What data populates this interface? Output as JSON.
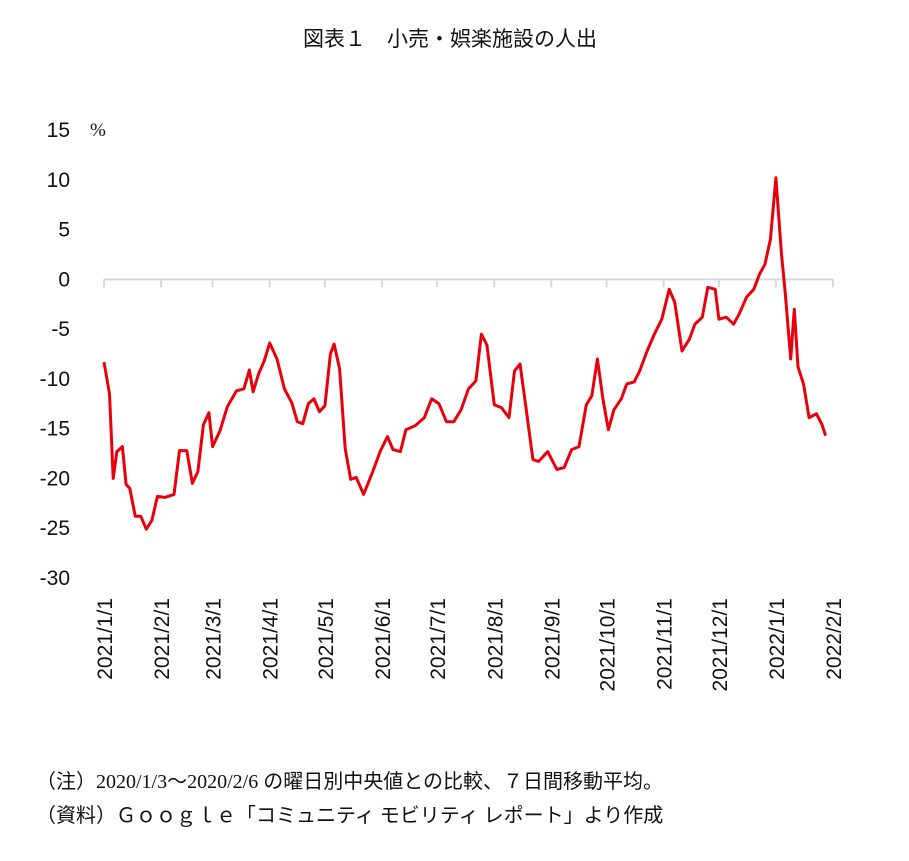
{
  "chart_data": {
    "type": "line",
    "title": "図表１　小売・娯楽施設の人出",
    "y_unit": "%",
    "x": [
      "2021/1/1",
      "2021/1/4",
      "2021/1/6",
      "2021/1/8",
      "2021/1/11",
      "2021/1/13",
      "2021/1/15",
      "2021/1/18",
      "2021/1/21",
      "2021/1/24",
      "2021/1/27",
      "2021/1/30",
      "2021/2/3",
      "2021/2/8",
      "2021/2/11",
      "2021/2/15",
      "2021/2/18",
      "2021/2/21",
      "2021/2/24",
      "2021/2/27",
      "2021/3/1",
      "2021/3/5",
      "2021/3/9",
      "2021/3/14",
      "2021/3/18",
      "2021/3/21",
      "2021/3/23",
      "2021/3/26",
      "2021/3/29",
      "2021/4/1",
      "2021/4/5",
      "2021/4/9",
      "2021/4/13",
      "2021/4/16",
      "2021/4/19",
      "2021/4/22",
      "2021/4/25",
      "2021/4/28",
      "2021/5/1",
      "2021/5/4",
      "2021/5/6",
      "2021/5/9",
      "2021/5/12",
      "2021/5/15",
      "2021/5/18",
      "2021/5/22",
      "2021/5/27",
      "2021/5/31",
      "2021/6/4",
      "2021/6/7",
      "2021/6/11",
      "2021/6/14",
      "2021/6/19",
      "2021/6/24",
      "2021/6/28",
      "2021/7/2",
      "2021/7/6",
      "2021/7/10",
      "2021/7/14",
      "2021/7/18",
      "2021/7/22",
      "2021/7/25",
      "2021/7/28",
      "2021/8/1",
      "2021/8/5",
      "2021/8/9",
      "2021/8/12",
      "2021/8/15",
      "2021/8/18",
      "2021/8/22",
      "2021/8/25",
      "2021/8/30",
      "2021/9/4",
      "2021/9/8",
      "2021/9/12",
      "2021/9/16",
      "2021/9/20",
      "2021/9/23",
      "2021/9/26",
      "2021/9/29",
      "2021/10/2",
      "2021/10/5",
      "2021/10/9",
      "2021/10/12",
      "2021/10/16",
      "2021/10/19",
      "2021/10/23",
      "2021/10/27",
      "2021/10/31",
      "2021/11/4",
      "2021/11/7",
      "2021/11/11",
      "2021/11/15",
      "2021/11/18",
      "2021/11/22",
      "2021/11/25",
      "2021/11/29",
      "2021/12/1",
      "2021/12/5",
      "2021/12/9",
      "2021/12/12",
      "2021/12/16",
      "2021/12/20",
      "2021/12/23",
      "2021/12/26",
      "2021/12/29",
      "2022/1/1",
      "2022/1/4",
      "2022/1/6",
      "2022/1/9",
      "2022/1/11",
      "2022/1/13",
      "2022/1/16",
      "2022/1/19",
      "2022/1/23",
      "2022/1/26",
      "2022/1/28"
    ],
    "values": [
      -8.3,
      -11.5,
      -20,
      -17.3,
      -16.8,
      -20.6,
      -21,
      -23.8,
      -23.8,
      -25.1,
      -24.2,
      -21.8,
      -21.9,
      -21.6,
      -17.2,
      -17.2,
      -20.5,
      -19.3,
      -14.6,
      -13.4,
      -16.8,
      -15.2,
      -12.8,
      -11.2,
      -11,
      -9.1,
      -11.3,
      -9.5,
      -8.2,
      -6.4,
      -8,
      -11,
      -12.4,
      -14.3,
      -14.5,
      -12.5,
      -12,
      -13.3,
      -12.7,
      -7.5,
      -6.5,
      -9,
      -17,
      -20.1,
      -19.9,
      -21.6,
      -19.3,
      -17.3,
      -15.8,
      -17.1,
      -17.3,
      -15.1,
      -14.7,
      -13.9,
      -12,
      -12.5,
      -14.3,
      -14.3,
      -13.1,
      -11,
      -10.2,
      -5.5,
      -6.6,
      -12.6,
      -12.9,
      -13.9,
      -9.2,
      -8.5,
      -12.6,
      -18.1,
      -18.3,
      -17.3,
      -19.1,
      -18.9,
      -17.1,
      -16.8,
      -12.6,
      -11.7,
      -8,
      -12,
      -15.1,
      -13.1,
      -12,
      -10.5,
      -10.3,
      -9.2,
      -7.2,
      -5.5,
      -4,
      -1,
      -2.3,
      -7.2,
      -6,
      -4.5,
      -3.8,
      -0.8,
      -1,
      -4,
      -3.8,
      -4.5,
      -3.5,
      -1.8,
      -1,
      0.5,
      1.5,
      4,
      10.2,
      2.5,
      -1.2,
      -8,
      -3,
      -8.8,
      -10.5,
      -13.9,
      -13.5,
      -14.6,
      -15.7
    ],
    "color": "#e8000b",
    "xlim": [
      "2021/1/1",
      "2022/2/1"
    ],
    "xticks": [
      "2021/1/1",
      "2021/2/1",
      "2021/3/1",
      "2021/4/1",
      "2021/5/1",
      "2021/6/1",
      "2021/7/1",
      "2021/8/1",
      "2021/9/1",
      "2021/10/1",
      "2021/11/1",
      "2021/12/1",
      "2022/1/1",
      "2022/2/1"
    ],
    "ylim": [
      -30,
      15
    ],
    "yticks": [
      15,
      10,
      5,
      0,
      -5,
      -10,
      -15,
      -20,
      -25,
      -30
    ],
    "notes": [
      "（注）2020/1/3～2020/2/6 の曜日別中央値との比較、７日間移動平均。",
      "（資料）Ｇｏｏｇｌｅ「コミュニティ モビリティ レポート」より作成"
    ]
  }
}
